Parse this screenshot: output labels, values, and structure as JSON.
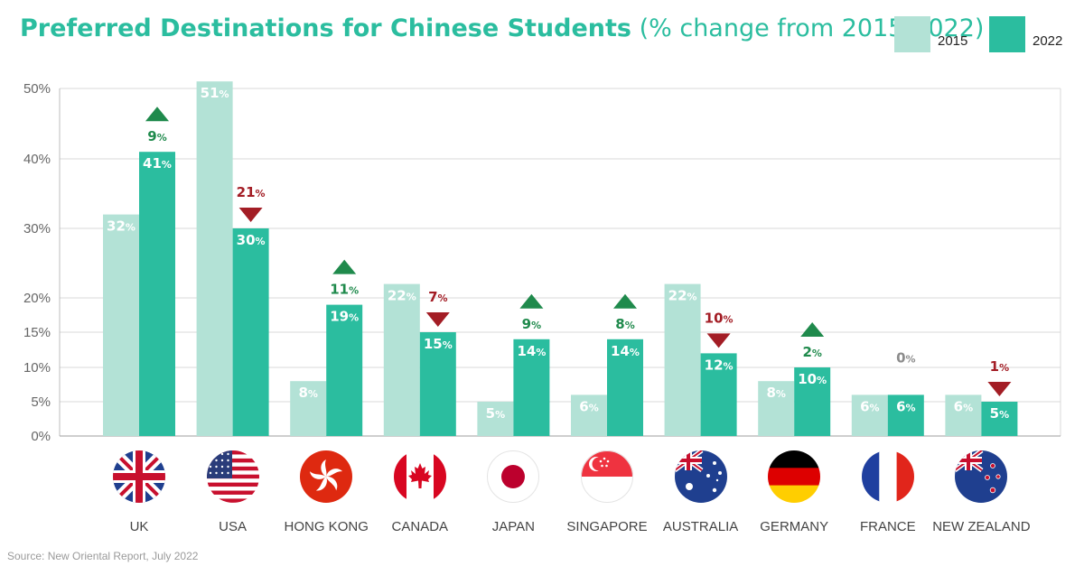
{
  "title": {
    "main": "Preferred Destinations for Chinese Students",
    "sub": "(% change from 2015-2022)"
  },
  "source": "Source: New Oriental Report, July 2022",
  "colors": {
    "series_2015": "#b3e2d6",
    "series_2022": "#2bbd9f",
    "up": "#1f8a4c",
    "down": "#a31d25",
    "neutral": "#8c8c8c",
    "grid": "#d9d9d9"
  },
  "chart_data": {
    "type": "bar",
    "categories": [
      "UK",
      "USA",
      "HONG KONG",
      "CANADA",
      "JAPAN",
      "SINGAPORE",
      "AUSTRALIA",
      "GERMANY",
      "FRANCE",
      "NEW ZEALAND"
    ],
    "series": [
      {
        "name": "2015",
        "values": [
          32,
          51,
          8,
          22,
          5,
          6,
          22,
          8,
          6,
          6
        ]
      },
      {
        "name": "2022",
        "values": [
          41,
          30,
          19,
          15,
          14,
          14,
          12,
          10,
          6,
          5
        ]
      }
    ],
    "value_labels": {
      "2015": [
        "32%",
        "51%",
        "8%",
        "22%",
        "5%",
        "6%",
        "22%",
        "8%",
        "6%",
        "6%"
      ],
      "2022": [
        "41%",
        "30%",
        "19%",
        "15%",
        "14%",
        "14%",
        "12%",
        "10%",
        "6%",
        "5%"
      ]
    },
    "change": [
      {
        "label": "9%",
        "direction": "up"
      },
      {
        "label": "21%",
        "direction": "down"
      },
      {
        "label": "11%",
        "direction": "up"
      },
      {
        "label": "7%",
        "direction": "down"
      },
      {
        "label": "9%",
        "direction": "up"
      },
      {
        "label": "8%",
        "direction": "up"
      },
      {
        "label": "10%",
        "direction": "down"
      },
      {
        "label": "2%",
        "direction": "up"
      },
      {
        "label": "0%",
        "direction": "none"
      },
      {
        "label": "1%",
        "direction": "down"
      }
    ],
    "y_ticks": [
      0,
      5,
      10,
      15,
      20,
      30,
      40,
      50
    ],
    "y_tick_labels": [
      "0%",
      "5%",
      "10%",
      "15%",
      "20%",
      "30%",
      "40%",
      "50%"
    ],
    "ylim": [
      0,
      50
    ],
    "grid": true,
    "legend_position": "top-right",
    "flags": [
      "uk",
      "usa",
      "hong-kong",
      "canada",
      "japan",
      "singapore",
      "australia",
      "germany",
      "france",
      "new-zealand"
    ]
  }
}
